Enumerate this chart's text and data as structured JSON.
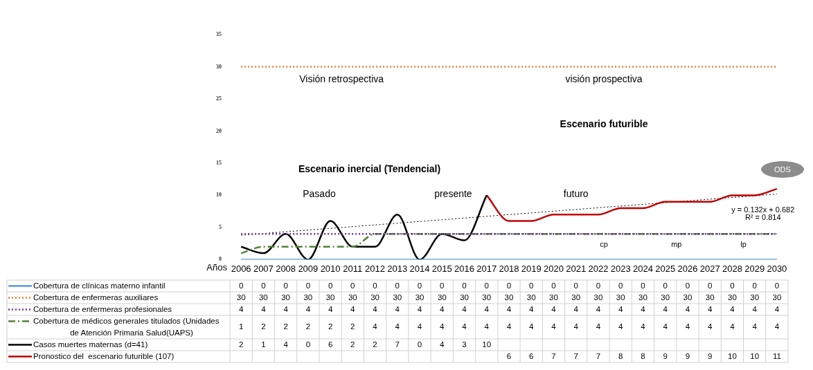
{
  "chart_data": {
    "type": "line",
    "xlabel": "Años",
    "categories": [
      "2006",
      "2007",
      "2008",
      "2009",
      "2010",
      "2011",
      "2012",
      "2013",
      "2014",
      "2015",
      "2016",
      "2017",
      "2018",
      "2019",
      "2020",
      "2021",
      "2022",
      "2023",
      "2024",
      "2025",
      "2026",
      "2027",
      "2028",
      "2029",
      "2030"
    ],
    "series": [
      {
        "name": "Cobertura de clínicas materno infantil",
        "color": "#5b9bd5",
        "line_style": "solid",
        "values": [
          0,
          0,
          0,
          0,
          0,
          0,
          0,
          0,
          0,
          0,
          0,
          0,
          0,
          0,
          0,
          0,
          0,
          0,
          0,
          0,
          0,
          0,
          0,
          0,
          0
        ]
      },
      {
        "name": "Cobertura de enfermeras auxiliares",
        "color": "#ed7d31",
        "line_style": "dotted",
        "values": [
          30,
          30,
          30,
          30,
          30,
          30,
          30,
          30,
          30,
          30,
          30,
          30,
          30,
          30,
          30,
          30,
          30,
          30,
          30,
          30,
          30,
          30,
          30,
          30,
          30
        ]
      },
      {
        "name": "Cobertura de enfermeras profesionales",
        "color": "#7030a0",
        "line_style": "dotted",
        "values": [
          4,
          4,
          4,
          4,
          4,
          4,
          4,
          4,
          4,
          4,
          4,
          4,
          4,
          4,
          4,
          4,
          4,
          4,
          4,
          4,
          4,
          4,
          4,
          4,
          4
        ]
      },
      {
        "name": "Cobertura de médicos generales titulados (Unidades de Atención Primaria Salud(UAPS)",
        "color": "#548235",
        "line_style": "dashed",
        "values": [
          1,
          2,
          2,
          2,
          2,
          2,
          4,
          4,
          4,
          4,
          4,
          4,
          4,
          4,
          4,
          4,
          4,
          4,
          4,
          4,
          4,
          4,
          4,
          4,
          4
        ]
      },
      {
        "name": "Casos muertes maternas (d=41)",
        "color": "#000000",
        "line_style": "solid",
        "values": [
          2,
          1,
          4,
          0,
          6,
          2,
          2,
          7,
          0,
          4,
          3,
          10,
          null,
          null,
          null,
          null,
          null,
          null,
          null,
          null,
          null,
          null,
          null,
          null,
          null
        ]
      },
      {
        "name": "Pronostico del  escenario futurible (107)",
        "color": "#c00000",
        "line_style": "solid",
        "values": [
          null,
          null,
          null,
          null,
          null,
          null,
          null,
          null,
          null,
          null,
          null,
          10,
          6,
          6,
          7,
          7,
          7,
          8,
          8,
          9,
          9,
          9,
          10,
          10,
          11
        ],
        "value_labels": [
          null,
          null,
          null,
          null,
          null,
          null,
          null,
          null,
          null,
          null,
          null,
          null,
          "6",
          "6",
          "7",
          "7",
          "7",
          "8",
          "8",
          "9",
          "9",
          "9",
          "10",
          "10",
          "11"
        ]
      },
      {
        "color": "#000000",
        "line_style": "dotted",
        "values": [
          3.8,
          null,
          null,
          null,
          null,
          null,
          null,
          null,
          null,
          null,
          null,
          null,
          null,
          null,
          null,
          null,
          null,
          null,
          null,
          null,
          null,
          null,
          null,
          null,
          10.2
        ],
        "value_labels": [
          null,
          null,
          null,
          null,
          null,
          null,
          null,
          null,
          null,
          null,
          null,
          null,
          null,
          null,
          null,
          null,
          null,
          null,
          null,
          null,
          null,
          null,
          null,
          null,
          null
        ]
      }
    ],
    "ylim": [
      0,
      35
    ],
    "yticks": [
      0,
      5,
      10,
      15,
      20,
      25,
      30,
      35
    ],
    "grid": false,
    "legend": "bottom",
    "data_labels": true,
    "annotations": [
      "Visión retrospectiva",
      "visión prospectiva",
      "Escenario inercial (Tendencial)",
      "Escenario futurible",
      "Pasado",
      "presente",
      "futuro",
      "cp",
      "mp",
      "lp",
      "ODS",
      "y = 0.132x + 0.682",
      "R² = 0.814"
    ]
  }
}
